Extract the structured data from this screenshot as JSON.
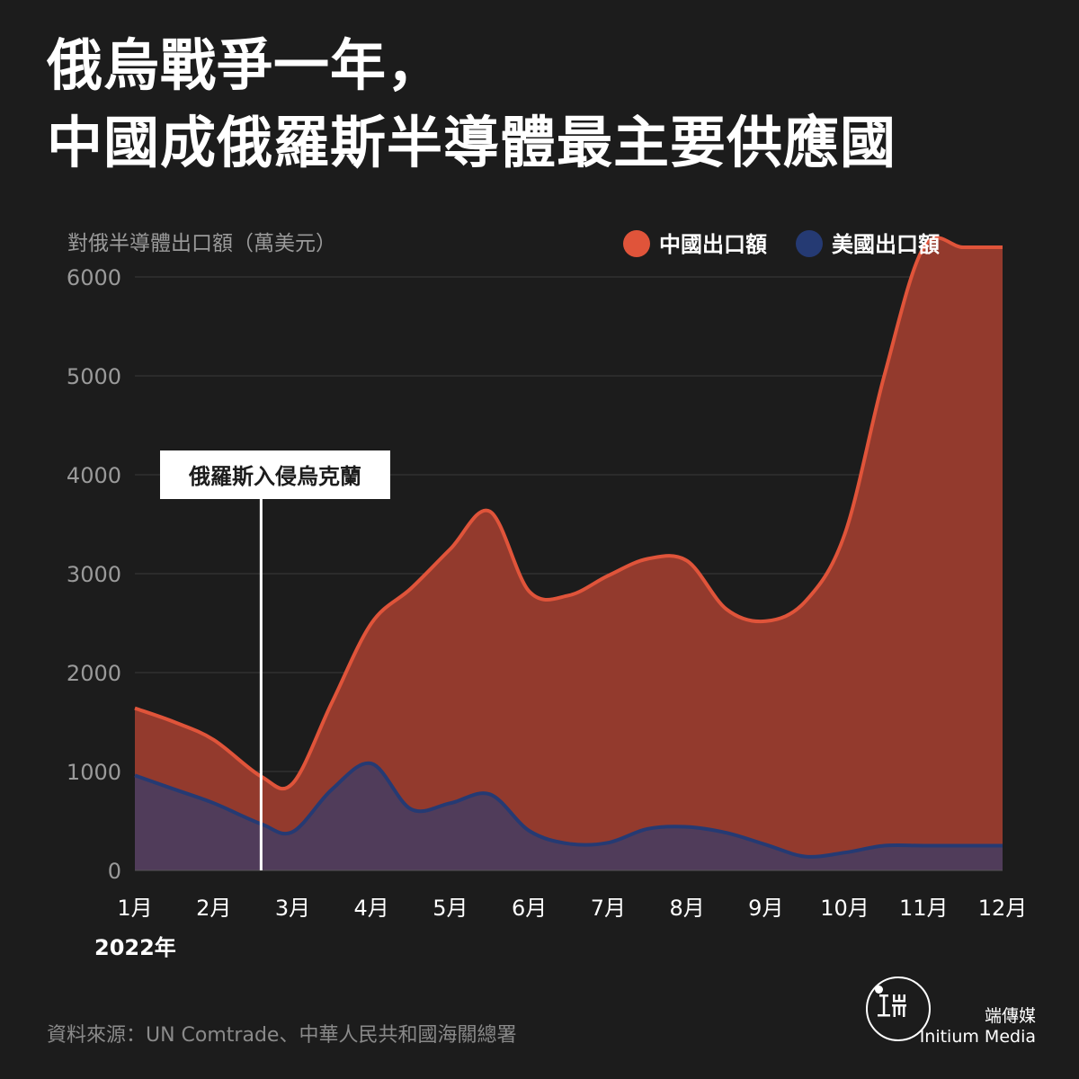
{
  "title": {
    "line1": "俄烏戰爭一年，",
    "line2": "中國成俄羅斯半導體最主要供應國"
  },
  "chart_data": {
    "type": "area",
    "ylabel": "對俄半導體出口額（萬美元）",
    "xlabel": "2022年",
    "categories": [
      "1月",
      "2月",
      "3月",
      "4月",
      "5月",
      "6月",
      "7月",
      "8月",
      "9月",
      "10月",
      "11月",
      "12月"
    ],
    "x": [
      1,
      1.5,
      2,
      2.6,
      3,
      3.5,
      4,
      4.5,
      5,
      5.5,
      6,
      6.5,
      7,
      7.5,
      8,
      8.5,
      9,
      9.5,
      10,
      10.5,
      11,
      11.5,
      12
    ],
    "ylim": [
      0,
      6000
    ],
    "yticks": [
      0,
      1000,
      2000,
      3000,
      4000,
      5000,
      6000
    ],
    "grid": true,
    "legend_position": "top-right",
    "series": [
      {
        "name": "中國出口額",
        "color": "#e0543a",
        "fill": "#933a2d",
        "values": [
          1640,
          1500,
          1320,
          950,
          880,
          1700,
          2500,
          2850,
          3250,
          3630,
          2820,
          2780,
          2980,
          3150,
          3130,
          2640,
          2520,
          2720,
          3400,
          5000,
          6300,
          6300,
          6300
        ]
      },
      {
        "name": "美國出口額",
        "color": "#253a73",
        "fill": "#503c5a",
        "values": [
          960,
          820,
          680,
          470,
          390,
          820,
          1080,
          620,
          680,
          770,
          400,
          270,
          280,
          420,
          440,
          380,
          260,
          140,
          180,
          250,
          250,
          250,
          250
        ]
      }
    ],
    "annotation": {
      "label": "俄羅斯入侵烏克蘭",
      "x": 2.6,
      "color": "#ffffff"
    }
  },
  "footer": {
    "source": "資料來源：UN Comtrade、中華人民共和國海關總署",
    "brand_cn": "端傳媒",
    "brand_en": "Initium Media",
    "logo_glyph": "┸ 山\n工 而"
  }
}
